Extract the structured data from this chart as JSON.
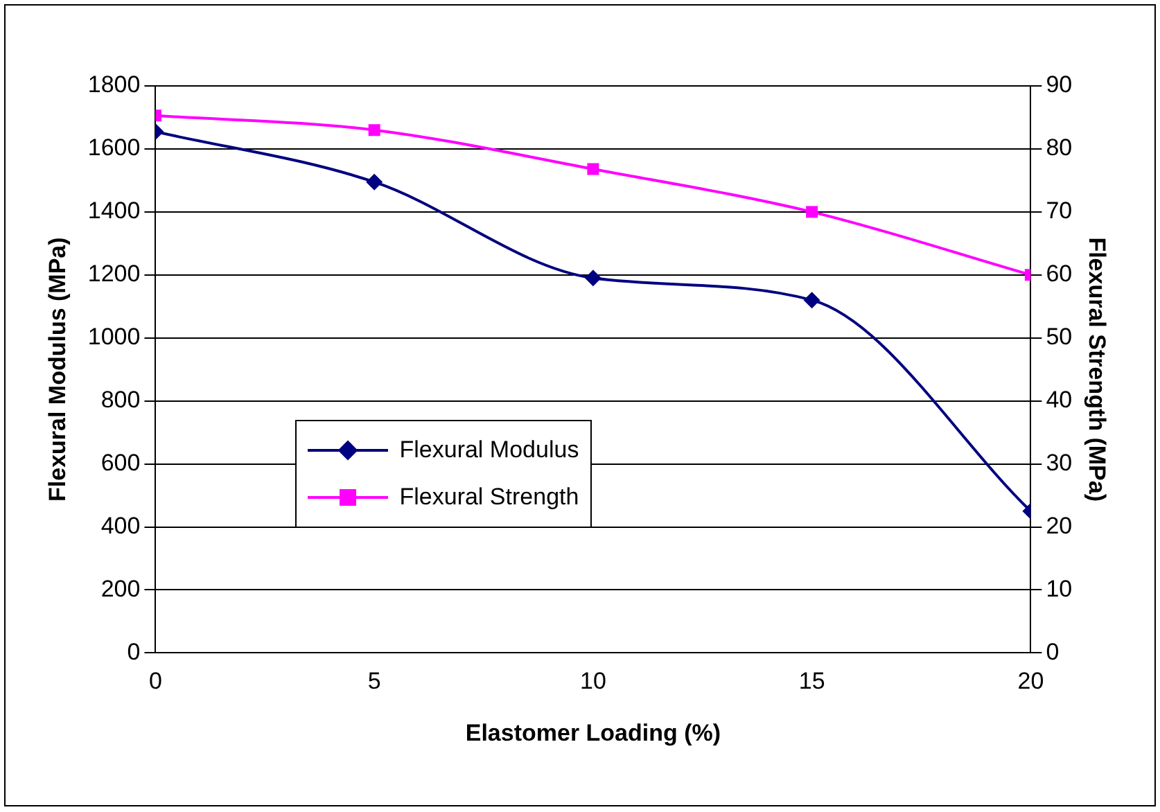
{
  "chart_data": {
    "type": "line",
    "xlabel": "Elastomer Loading (%)",
    "ylabel": "Flexural Modulus (MPa)",
    "y2label": "Flexural Strength (MPa)",
    "x": [
      0,
      5,
      10,
      15,
      20
    ],
    "series": [
      {
        "name": "Flexural Modulus",
        "color": "#000080",
        "values": [
          1655,
          1495,
          1190,
          1120,
          450
        ],
        "marker": "diamond"
      },
      {
        "name": "Flexural Strength",
        "color": "#ff00ff",
        "values": [
          85.3,
          83,
          76.8,
          70,
          60
        ],
        "marker": "square",
        "axis": "y2"
      }
    ],
    "xlim": [
      0,
      20
    ],
    "xticks": [
      0,
      5,
      10,
      15,
      20
    ],
    "ylim": [
      0,
      1800
    ],
    "yticks": [
      0,
      200,
      400,
      600,
      800,
      1000,
      1200,
      1400,
      1600,
      1800
    ],
    "y2lim": [
      0,
      90
    ],
    "y2ticks": [
      0,
      10,
      20,
      30,
      40,
      50,
      60,
      70,
      80,
      90
    ],
    "grid": "y",
    "legend": "bottom left"
  }
}
